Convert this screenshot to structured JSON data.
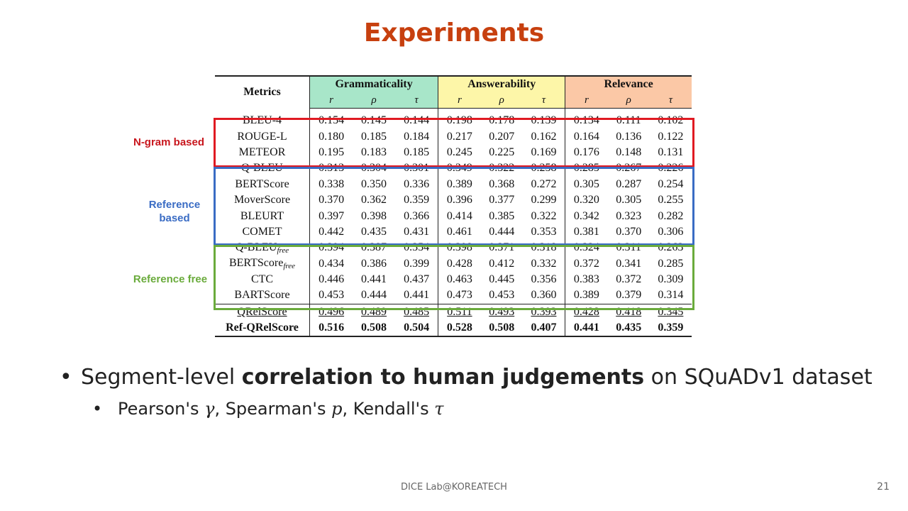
{
  "slide": {
    "title": "Experiments",
    "footer": "DICE Lab@KOREATECH",
    "page_number": "21"
  },
  "table": {
    "metrics_header": "Metrics",
    "groups": [
      "Grammaticality",
      "Answerability",
      "Relevance"
    ],
    "sub_headers": [
      "r",
      "ρ",
      "τ"
    ],
    "rows": [
      {
        "name": "BLEU-4",
        "values": [
          "0.154",
          "0.145",
          "0.144",
          "0.198",
          "0.178",
          "0.139",
          "0.134",
          "0.111",
          "0.102"
        ]
      },
      {
        "name": "ROUGE-L",
        "values": [
          "0.180",
          "0.185",
          "0.184",
          "0.217",
          "0.207",
          "0.162",
          "0.164",
          "0.136",
          "0.122"
        ]
      },
      {
        "name": "METEOR",
        "values": [
          "0.195",
          "0.183",
          "0.185",
          "0.245",
          "0.225",
          "0.169",
          "0.176",
          "0.148",
          "0.131"
        ]
      },
      {
        "name": "Q-BLEU",
        "values": [
          "0.313",
          "0.304",
          "0.301",
          "0.349",
          "0.322",
          "0.258",
          "0.285",
          "0.267",
          "0.226"
        ]
      },
      {
        "name": "BERTScore",
        "values": [
          "0.338",
          "0.350",
          "0.336",
          "0.389",
          "0.368",
          "0.272",
          "0.305",
          "0.287",
          "0.254"
        ]
      },
      {
        "name": "MoverScore",
        "values": [
          "0.370",
          "0.362",
          "0.359",
          "0.396",
          "0.377",
          "0.299",
          "0.320",
          "0.305",
          "0.255"
        ]
      },
      {
        "name": "BLEURT",
        "values": [
          "0.397",
          "0.398",
          "0.366",
          "0.414",
          "0.385",
          "0.322",
          "0.342",
          "0.323",
          "0.282"
        ]
      },
      {
        "name": "COMET",
        "values": [
          "0.442",
          "0.435",
          "0.431",
          "0.461",
          "0.444",
          "0.353",
          "0.381",
          "0.370",
          "0.306"
        ]
      },
      {
        "name": "Q-BLEU",
        "subscript": "free",
        "values": [
          "0.394",
          "0.387",
          "0.354",
          "0.398",
          "0.371",
          "0.318",
          "0.324",
          "0.311",
          "0.263"
        ]
      },
      {
        "name": "BERTScore",
        "subscript": "free",
        "values": [
          "0.434",
          "0.386",
          "0.399",
          "0.428",
          "0.412",
          "0.332",
          "0.372",
          "0.341",
          "0.285"
        ]
      },
      {
        "name": "CTC",
        "values": [
          "0.446",
          "0.441",
          "0.437",
          "0.463",
          "0.445",
          "0.356",
          "0.383",
          "0.372",
          "0.309"
        ]
      },
      {
        "name": "BARTScore",
        "values": [
          "0.453",
          "0.444",
          "0.441",
          "0.473",
          "0.453",
          "0.360",
          "0.389",
          "0.379",
          "0.314"
        ]
      },
      {
        "name": "QRelScore",
        "style": "underline",
        "values": [
          "0.496",
          "0.489",
          "0.485",
          "0.511",
          "0.493",
          "0.393",
          "0.428",
          "0.418",
          "0.345"
        ]
      },
      {
        "name": "Ref-QRelScore",
        "style": "bold",
        "values": [
          "0.516",
          "0.508",
          "0.504",
          "0.528",
          "0.508",
          "0.407",
          "0.441",
          "0.435",
          "0.359"
        ]
      }
    ]
  },
  "group_labels": {
    "ngram": "N-gram based",
    "reference_line1": "Reference",
    "reference_line2": "based",
    "free": "Reference free"
  },
  "bullets": {
    "main_pre": "Segment-level ",
    "main_bold": "correlation to human judgements",
    "main_post": " on SQuADv1 dataset",
    "sub_p1": "Pearson's ",
    "sub_sym1": "γ",
    "sub_p2": ", Spearman's ",
    "sub_sym2": "p",
    "sub_p3": ", Kendall's ",
    "sub_sym3": "τ"
  },
  "colors": {
    "title": "#c7400f",
    "grammaticality_bg": "#a8e6c9",
    "answerability_bg": "#fdf6a8",
    "relevance_bg": "#fbc8a6",
    "ngram_box": "#e01a22",
    "reference_box": "#3a6cc4",
    "free_box": "#6aab3c"
  }
}
